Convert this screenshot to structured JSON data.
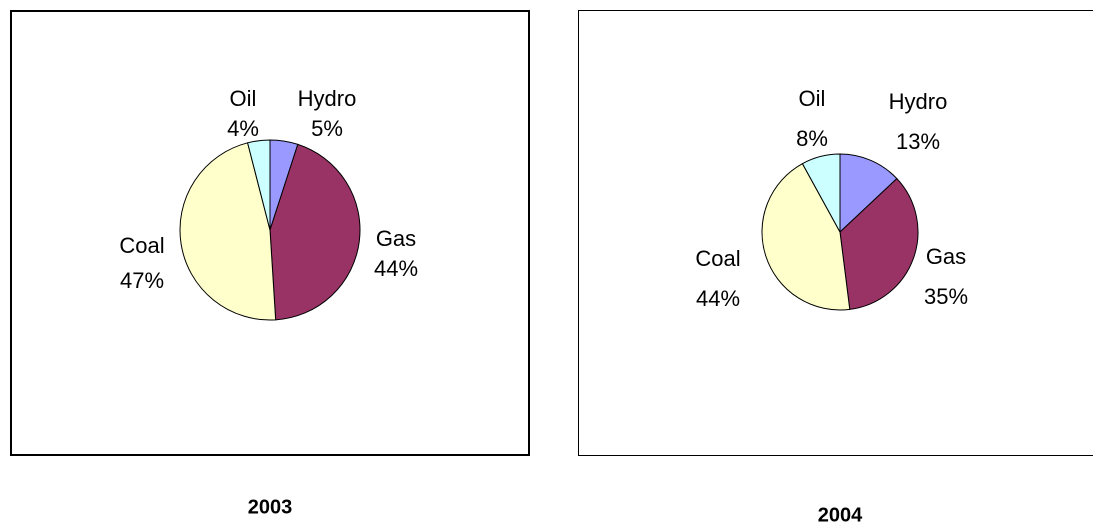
{
  "chart_data": [
    {
      "type": "pie",
      "title": "2003",
      "categories": [
        "Hydro",
        "Gas",
        "Coal",
        "Oil"
      ],
      "values": [
        5,
        44,
        47,
        4
      ],
      "value_labels": [
        "5%",
        "44%",
        "47%",
        "4%"
      ],
      "colors": [
        "#9999ff",
        "#993366",
        "#ffffcc",
        "#ccffff"
      ]
    },
    {
      "type": "pie",
      "title": "2004",
      "categories": [
        "Hydro",
        "Gas",
        "Coal",
        "Oil"
      ],
      "values": [
        13,
        35,
        44,
        8
      ],
      "value_labels": [
        "13%",
        "35%",
        "44%",
        "8%"
      ],
      "colors": [
        "#9999ff",
        "#993366",
        "#ffffcc",
        "#ccffff"
      ]
    }
  ]
}
